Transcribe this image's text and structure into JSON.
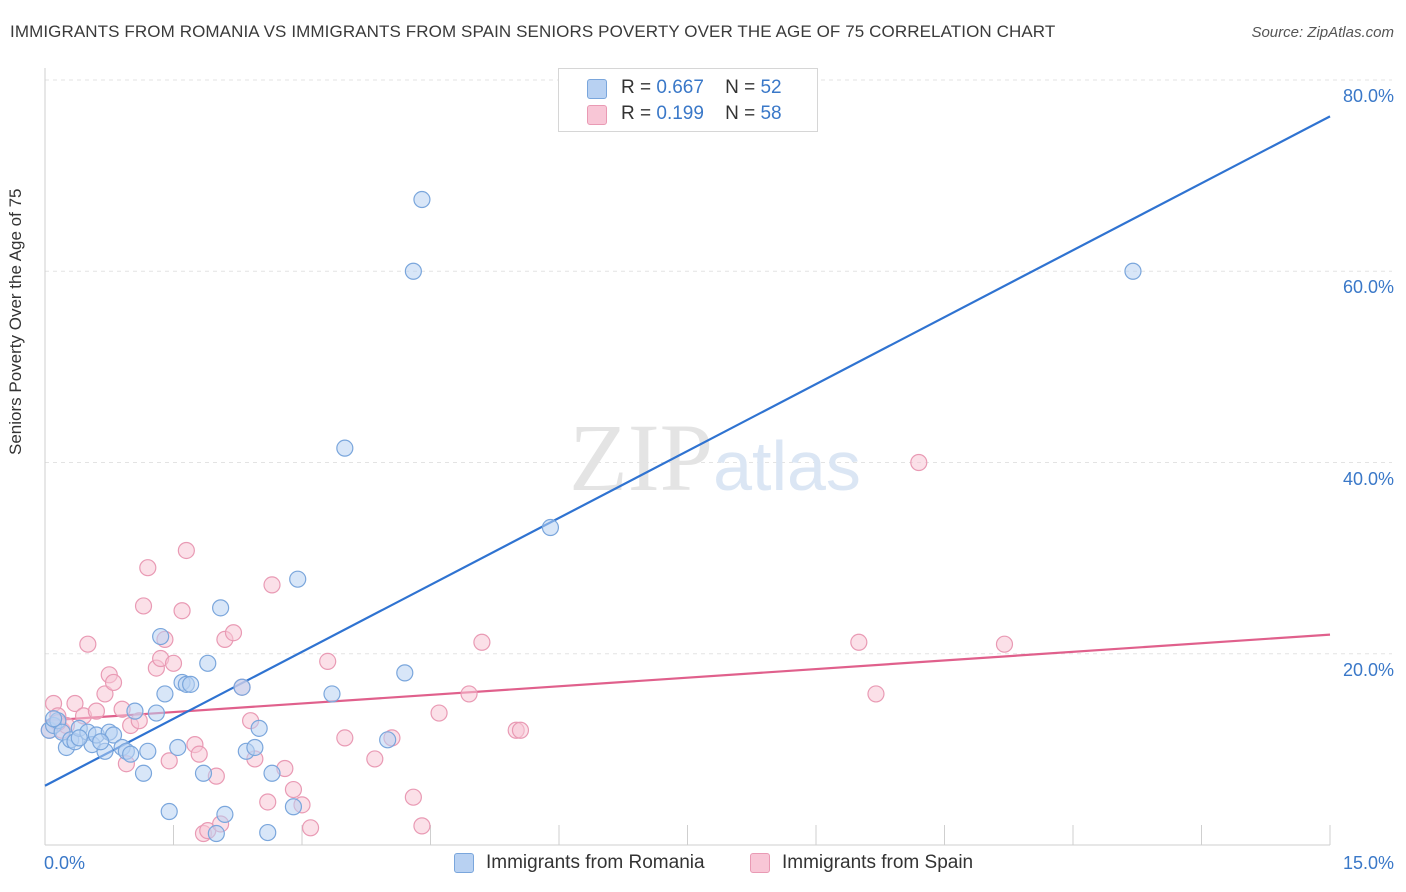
{
  "header": {
    "title": "IMMIGRANTS FROM ROMANIA VS IMMIGRANTS FROM SPAIN SENIORS POVERTY OVER THE AGE OF 75 CORRELATION CHART",
    "source": "Source: ZipAtlas.com"
  },
  "legend_top": {
    "rows": [
      {
        "r_label": "R =",
        "r_value": "0.667",
        "n_label": "N =",
        "n_value": "52"
      },
      {
        "r_label": "R =",
        "r_value": "0.199",
        "n_label": "N =",
        "n_value": "58"
      }
    ]
  },
  "legend_bottom": {
    "items": [
      "Immigrants from Romania",
      "Immigrants from Spain"
    ]
  },
  "colors": {
    "blue_fill": "#b8d1f2",
    "blue_stroke": "#7aa6dc",
    "blue_line": "#2f73d1",
    "pink_fill": "#f8c6d6",
    "pink_stroke": "#e99ab4",
    "pink_line": "#e0608c",
    "axis_text": "#3a78c8",
    "grid": "#e3e3e3"
  },
  "chart_data": {
    "type": "scatter",
    "title": "IMMIGRANTS FROM ROMANIA VS IMMIGRANTS FROM SPAIN SENIORS POVERTY OVER THE AGE OF 75 CORRELATION CHART",
    "xlabel": "",
    "ylabel": "Seniors Poverty Over the Age of 75",
    "xlim": [
      0,
      15
    ],
    "ylim": [
      0,
      80
    ],
    "x_tick_labels": [
      "0.0%",
      "15.0%"
    ],
    "y_ticks": [
      20,
      40,
      60,
      80
    ],
    "y_tick_labels": [
      "20.0%",
      "40.0%",
      "60.0%",
      "80.0%"
    ],
    "watermark": "ZIPatlas",
    "series": [
      {
        "name": "Immigrants from Romania",
        "r": 0.667,
        "n": 52,
        "trend": {
          "x": [
            0,
            15
          ],
          "y": [
            6.2,
            76.2
          ]
        },
        "points": [
          [
            0.05,
            12.0
          ],
          [
            0.1,
            12.5
          ],
          [
            0.15,
            13.0
          ],
          [
            0.2,
            11.8
          ],
          [
            0.25,
            10.2
          ],
          [
            0.3,
            11.0
          ],
          [
            0.35,
            10.8
          ],
          [
            0.4,
            12.2
          ],
          [
            0.5,
            11.8
          ],
          [
            0.55,
            10.5
          ],
          [
            0.6,
            11.5
          ],
          [
            0.7,
            9.8
          ],
          [
            0.75,
            11.8
          ],
          [
            0.8,
            11.5
          ],
          [
            0.9,
            10.2
          ],
          [
            0.95,
            9.8
          ],
          [
            1.0,
            9.5
          ],
          [
            1.05,
            14.0
          ],
          [
            1.15,
            7.5
          ],
          [
            1.3,
            13.8
          ],
          [
            1.35,
            21.8
          ],
          [
            1.4,
            15.8
          ],
          [
            1.45,
            3.5
          ],
          [
            1.55,
            10.2
          ],
          [
            1.6,
            17.0
          ],
          [
            1.65,
            16.8
          ],
          [
            1.7,
            16.8
          ],
          [
            1.85,
            7.5
          ],
          [
            1.9,
            19.0
          ],
          [
            2.0,
            1.2
          ],
          [
            2.05,
            24.8
          ],
          [
            2.1,
            3.2
          ],
          [
            2.3,
            16.5
          ],
          [
            2.35,
            9.8
          ],
          [
            2.45,
            10.2
          ],
          [
            2.5,
            12.2
          ],
          [
            2.6,
            1.3
          ],
          [
            2.65,
            7.5
          ],
          [
            2.9,
            4.0
          ],
          [
            2.95,
            27.8
          ],
          [
            3.35,
            15.8
          ],
          [
            3.5,
            41.5
          ],
          [
            4.0,
            11.0
          ],
          [
            4.2,
            18.0
          ],
          [
            4.3,
            60.0
          ],
          [
            4.4,
            67.5
          ],
          [
            5.9,
            33.2
          ],
          [
            12.7,
            60.0
          ],
          [
            0.1,
            13.2
          ],
          [
            0.4,
            11.2
          ],
          [
            1.2,
            9.8
          ],
          [
            0.65,
            10.8
          ]
        ]
      },
      {
        "name": "Immigrants from Spain",
        "r": 0.199,
        "n": 58,
        "trend": {
          "x": [
            0,
            15
          ],
          "y": [
            13.0,
            22.0
          ]
        },
        "points": [
          [
            0.05,
            12.0
          ],
          [
            0.1,
            14.8
          ],
          [
            0.15,
            13.5
          ],
          [
            0.2,
            12.0
          ],
          [
            0.25,
            12.5
          ],
          [
            0.35,
            14.8
          ],
          [
            0.45,
            13.5
          ],
          [
            0.5,
            21.0
          ],
          [
            0.6,
            14.0
          ],
          [
            0.7,
            15.8
          ],
          [
            0.75,
            17.8
          ],
          [
            0.8,
            17.0
          ],
          [
            0.9,
            14.2
          ],
          [
            0.95,
            8.5
          ],
          [
            1.0,
            12.5
          ],
          [
            1.1,
            13.0
          ],
          [
            1.15,
            25.0
          ],
          [
            1.2,
            29.0
          ],
          [
            1.3,
            18.5
          ],
          [
            1.35,
            19.5
          ],
          [
            1.4,
            21.5
          ],
          [
            1.5,
            19.0
          ],
          [
            1.6,
            24.5
          ],
          [
            1.65,
            30.8
          ],
          [
            1.75,
            10.5
          ],
          [
            1.8,
            9.5
          ],
          [
            1.85,
            1.2
          ],
          [
            1.9,
            1.5
          ],
          [
            2.0,
            7.2
          ],
          [
            2.05,
            2.2
          ],
          [
            2.1,
            21.5
          ],
          [
            2.2,
            22.2
          ],
          [
            2.3,
            16.5
          ],
          [
            2.4,
            13.0
          ],
          [
            2.45,
            9.0
          ],
          [
            2.6,
            4.5
          ],
          [
            2.65,
            27.2
          ],
          [
            2.8,
            8.0
          ],
          [
            2.9,
            5.8
          ],
          [
            3.0,
            4.2
          ],
          [
            3.1,
            1.8
          ],
          [
            3.3,
            19.2
          ],
          [
            3.5,
            11.2
          ],
          [
            3.85,
            9.0
          ],
          [
            4.05,
            11.2
          ],
          [
            4.3,
            5.0
          ],
          [
            4.4,
            2.0
          ],
          [
            4.6,
            13.8
          ],
          [
            4.95,
            15.8
          ],
          [
            5.1,
            21.2
          ],
          [
            5.5,
            12.0
          ],
          [
            5.55,
            12.0
          ],
          [
            9.5,
            21.2
          ],
          [
            9.7,
            15.8
          ],
          [
            10.2,
            40.0
          ],
          [
            11.2,
            21.0
          ],
          [
            0.15,
            12.8
          ],
          [
            1.45,
            8.8
          ]
        ]
      }
    ]
  }
}
